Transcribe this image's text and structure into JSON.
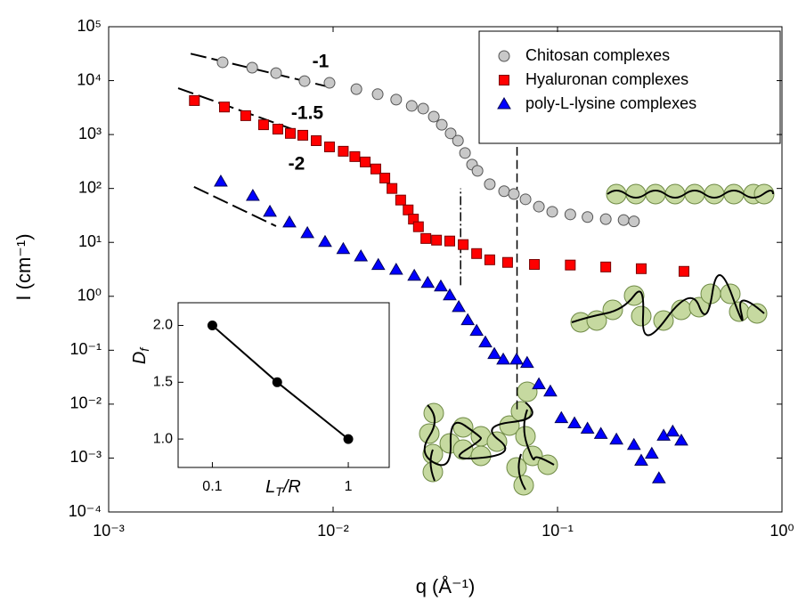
{
  "chart_data": [
    {
      "type": "scatter",
      "xlabel": "q (Å⁻¹)",
      "ylabel": "I (cm⁻¹)",
      "xscale": "log",
      "yscale": "log",
      "xlim": [
        0.001,
        1
      ],
      "ylim": [
        0.0001,
        100000
      ],
      "xticks": [
        {
          "value": 0.001,
          "label": "10⁻³"
        },
        {
          "value": 0.01,
          "label": "10⁻²"
        },
        {
          "value": 0.1,
          "label": "10⁻¹"
        },
        {
          "value": 1,
          "label": "10⁰"
        }
      ],
      "yticks": [
        {
          "value": 0.0001,
          "label": "10⁻⁴"
        },
        {
          "value": 0.001,
          "label": "10⁻³"
        },
        {
          "value": 0.01,
          "label": "10⁻²"
        },
        {
          "value": 0.1,
          "label": "10⁻¹"
        },
        {
          "value": 1,
          "label": "10⁰"
        },
        {
          "value": 10,
          "label": "10¹"
        },
        {
          "value": 100,
          "label": "10²"
        },
        {
          "value": 1000,
          "label": "10³"
        },
        {
          "value": 10000,
          "label": "10⁴"
        },
        {
          "value": 100000,
          "label": "10⁵"
        }
      ],
      "legend": "upper right",
      "series": [
        {
          "name": "Chitosan complexes",
          "marker": "circle",
          "color": "#c8c8c8",
          "x": [
            0.00322,
            0.00436,
            0.00557,
            0.00746,
            0.00964,
            0.0127,
            0.0158,
            0.0191,
            0.0224,
            0.0252,
            0.0281,
            0.0305,
            0.0334,
            0.036,
            0.0387,
            0.0416,
            0.044,
            0.0499,
            0.0578,
            0.0639,
            0.072,
            0.0826,
            0.0947,
            0.114,
            0.136,
            0.164,
            0.197,
            0.219
          ],
          "values": [
            21900,
            17400,
            13800,
            9800,
            9100,
            6950,
            5600,
            4450,
            3400,
            3030,
            2150,
            1520,
            1050,
            770,
            455,
            277,
            212,
            120,
            89,
            79,
            63,
            46,
            37,
            33,
            29.5,
            27,
            26,
            24.5
          ]
        },
        {
          "name": "Hyaluronan complexes",
          "marker": "square",
          "color": "#ff0000",
          "x": [
            0.00241,
            0.00328,
            0.00408,
            0.0049,
            0.00567,
            0.00645,
            0.00733,
            0.00841,
            0.00964,
            0.0111,
            0.0125,
            0.0139,
            0.0155,
            0.017,
            0.0183,
            0.02,
            0.0216,
            0.0228,
            0.024,
            0.0259,
            0.0289,
            0.0331,
            0.038,
            0.0436,
            0.0499,
            0.0599,
            0.0789,
            0.114,
            0.164,
            0.236,
            0.366
          ],
          "values": [
            4270,
            3240,
            2240,
            1520,
            1260,
            1050,
            970,
            770,
            590,
            490,
            390,
            310,
            230,
            156,
            100,
            61,
            40,
            27,
            19.5,
            11.8,
            11,
            10.6,
            9.1,
            6.2,
            4.75,
            4.25,
            3.9,
            3.8,
            3.5,
            3.25,
            2.9
          ]
        },
        {
          "name": "poly-L-lysine complexes",
          "marker": "triangle",
          "color": "#0000ff",
          "x": [
            0.00316,
            0.00439,
            0.00523,
            0.00639,
            0.00768,
            0.00921,
            0.0111,
            0.0133,
            0.0159,
            0.0191,
            0.023,
            0.0264,
            0.0302,
            0.0331,
            0.0363,
            0.0398,
            0.0436,
            0.0477,
            0.0523,
            0.0573,
            0.0657,
            0.0732,
            0.0826,
            0.0929,
            0.104,
            0.119,
            0.136,
            0.156,
            0.183,
            0.219,
            0.236,
            0.263,
            0.283,
            0.297,
            0.326,
            0.356
          ],
          "values": [
            134,
            73,
            37,
            23.4,
            14.8,
            10.2,
            7.5,
            5.5,
            3.8,
            3.1,
            2.4,
            1.77,
            1.52,
            1.04,
            0.63,
            0.36,
            0.228,
            0.139,
            0.085,
            0.067,
            0.067,
            0.058,
            0.0233,
            0.0171,
            0.0055,
            0.0044,
            0.0035,
            0.0028,
            0.0022,
            0.00175,
            0.00089,
            0.0012,
            0.00042,
            0.0026,
            0.0031,
            0.0021
          ]
        }
      ],
      "fits": [
        {
          "x": [
            0.00232,
            0.0097
          ],
          "y": [
            31600,
            7560
          ]
        },
        {
          "x": [
            0.00204,
            0.00668
          ],
          "y": [
            7250,
            1230
          ]
        },
        {
          "x": [
            0.0024,
            0.00557
          ],
          "y": [
            107,
            20
          ]
        }
      ],
      "annotations": [
        "-1",
        "-1.5",
        "-2"
      ],
      "reference_lines": [
        {
          "x": 0.037,
          "y": [
            1.6,
            100
          ]
        },
        {
          "x": 0.066,
          "y": [
            0.008,
            590
          ]
        }
      ]
    },
    {
      "type": "line",
      "xscale": "log",
      "xlabel": {
        "main": "L",
        "sub": "T",
        "rest": "/R"
      },
      "ylabel": {
        "main": "D",
        "sub": "f"
      },
      "xlim": [
        0.056,
        2.0
      ],
      "ylim": [
        0.75,
        2.2
      ],
      "xticks": [
        0.1,
        1
      ],
      "yticks": [
        {
          "value": 1,
          "label": "1.0"
        },
        1.5,
        {
          "value": 2,
          "label": "2.0"
        }
      ],
      "color": "#000000",
      "x": [
        0.1,
        0.3,
        1
      ],
      "values": [
        2.0,
        1.5,
        1.0
      ]
    }
  ]
}
